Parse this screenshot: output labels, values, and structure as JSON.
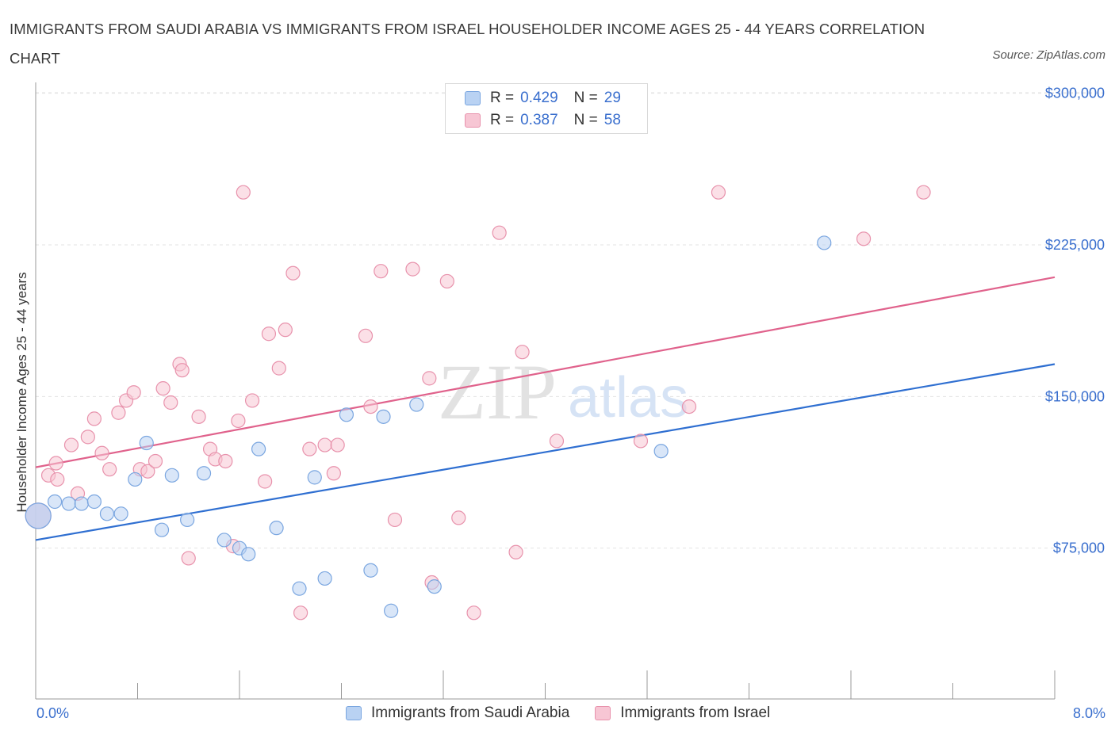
{
  "title": "IMMIGRANTS FROM SAUDI ARABIA VS IMMIGRANTS FROM ISRAEL HOUSEHOLDER INCOME AGES 25 - 44 YEARS CORRELATION CHART",
  "source": "Source: ZipAtlas.com",
  "watermark": {
    "zip": "ZIP",
    "atlas": "atlas"
  },
  "legend_top": {
    "rows": [
      {
        "r_label": "R =",
        "r_value": "0.429",
        "n_label": "N =",
        "n_value": "29"
      },
      {
        "r_label": "R =",
        "r_value": "0.387",
        "n_label": "N =",
        "n_value": "58"
      }
    ]
  },
  "colors": {
    "blue_fill": "#b9d2f3",
    "blue_stroke": "#7aa6e0",
    "blue_line": "#2f6fd1",
    "pink_fill": "#f7c6d4",
    "pink_stroke": "#e892ac",
    "pink_line": "#e0628c",
    "tick_text": "#3a6fce",
    "grid": "#e3e3e3",
    "axis": "#999999"
  },
  "chart_data": {
    "type": "scatter",
    "title": "IMMIGRANTS FROM SAUDI ARABIA VS IMMIGRANTS FROM ISRAEL HOUSEHOLDER INCOME AGES 25 - 44 YEARS CORRELATION CHART",
    "xlabel": "",
    "ylabel": "Householder Income Ages 25 - 44 years",
    "xlim": [
      0,
      8
    ],
    "ylim": [
      0,
      300000
    ],
    "x_tick_labels": {
      "min": "0.0%",
      "max": "8.0%"
    },
    "y_ticks": [
      {
        "value": 75000,
        "label": "$75,000"
      },
      {
        "value": 150000,
        "label": "$150,000"
      },
      {
        "value": 225000,
        "label": "$225,000"
      },
      {
        "value": 300000,
        "label": "$300,000"
      }
    ],
    "grid": true,
    "legend_position": "bottom",
    "series": [
      {
        "name": "Immigrants from Saudi Arabia",
        "color": "#b9d2f3",
        "trend": {
          "x": [
            0,
            8
          ],
          "y": 79000,
          "y_end": 166000
        },
        "points": [
          {
            "x": 0.02,
            "y": 91000,
            "big": true
          },
          {
            "x": 0.15,
            "y": 98000
          },
          {
            "x": 0.26,
            "y": 97000
          },
          {
            "x": 0.36,
            "y": 97000
          },
          {
            "x": 0.46,
            "y": 98000
          },
          {
            "x": 0.56,
            "y": 92000
          },
          {
            "x": 0.67,
            "y": 92000
          },
          {
            "x": 0.78,
            "y": 109000
          },
          {
            "x": 0.87,
            "y": 127000
          },
          {
            "x": 0.99,
            "y": 84000
          },
          {
            "x": 1.07,
            "y": 111000
          },
          {
            "x": 1.19,
            "y": 89000
          },
          {
            "x": 1.32,
            "y": 112000
          },
          {
            "x": 1.48,
            "y": 79000
          },
          {
            "x": 1.6,
            "y": 75000
          },
          {
            "x": 1.67,
            "y": 72000
          },
          {
            "x": 1.75,
            "y": 124000
          },
          {
            "x": 1.89,
            "y": 85000
          },
          {
            "x": 2.07,
            "y": 55000
          },
          {
            "x": 2.19,
            "y": 110000
          },
          {
            "x": 2.27,
            "y": 60000
          },
          {
            "x": 2.44,
            "y": 141000
          },
          {
            "x": 2.63,
            "y": 64000
          },
          {
            "x": 2.73,
            "y": 140000
          },
          {
            "x": 2.79,
            "y": 44000
          },
          {
            "x": 2.99,
            "y": 146000
          },
          {
            "x": 3.13,
            "y": 56000
          },
          {
            "x": 4.91,
            "y": 123000
          },
          {
            "x": 6.19,
            "y": 226000
          }
        ]
      },
      {
        "name": "Immigrants from Israel",
        "color": "#f7c6d4",
        "trend": {
          "x": [
            0,
            8
          ],
          "y": 115000,
          "y_end": 209000
        },
        "points": [
          {
            "x": 0.02,
            "y": 91000,
            "big": true
          },
          {
            "x": 0.1,
            "y": 111000
          },
          {
            "x": 0.17,
            "y": 109000
          },
          {
            "x": 0.16,
            "y": 117000
          },
          {
            "x": 0.28,
            "y": 126000
          },
          {
            "x": 0.33,
            "y": 102000
          },
          {
            "x": 0.41,
            "y": 130000
          },
          {
            "x": 0.46,
            "y": 139000
          },
          {
            "x": 0.52,
            "y": 122000
          },
          {
            "x": 0.58,
            "y": 114000
          },
          {
            "x": 0.65,
            "y": 142000
          },
          {
            "x": 0.71,
            "y": 148000
          },
          {
            "x": 0.77,
            "y": 152000
          },
          {
            "x": 0.82,
            "y": 114000
          },
          {
            "x": 0.88,
            "y": 113000
          },
          {
            "x": 0.94,
            "y": 118000
          },
          {
            "x": 1.0,
            "y": 154000
          },
          {
            "x": 1.06,
            "y": 147000
          },
          {
            "x": 1.13,
            "y": 166000
          },
          {
            "x": 1.15,
            "y": 163000
          },
          {
            "x": 1.2,
            "y": 70000
          },
          {
            "x": 1.28,
            "y": 140000
          },
          {
            "x": 1.37,
            "y": 124000
          },
          {
            "x": 1.41,
            "y": 119000
          },
          {
            "x": 1.49,
            "y": 118000
          },
          {
            "x": 1.55,
            "y": 76000
          },
          {
            "x": 1.59,
            "y": 138000
          },
          {
            "x": 1.63,
            "y": 251000
          },
          {
            "x": 1.7,
            "y": 148000
          },
          {
            "x": 1.8,
            "y": 108000
          },
          {
            "x": 1.83,
            "y": 181000
          },
          {
            "x": 1.91,
            "y": 164000
          },
          {
            "x": 1.96,
            "y": 183000
          },
          {
            "x": 2.02,
            "y": 211000
          },
          {
            "x": 2.08,
            "y": 43000
          },
          {
            "x": 2.15,
            "y": 124000
          },
          {
            "x": 2.27,
            "y": 126000
          },
          {
            "x": 2.34,
            "y": 112000
          },
          {
            "x": 2.37,
            "y": 126000
          },
          {
            "x": 2.59,
            "y": 180000
          },
          {
            "x": 2.63,
            "y": 145000
          },
          {
            "x": 2.71,
            "y": 212000
          },
          {
            "x": 2.82,
            "y": 89000
          },
          {
            "x": 2.96,
            "y": 213000
          },
          {
            "x": 3.11,
            "y": 58000
          },
          {
            "x": 3.09,
            "y": 159000
          },
          {
            "x": 3.23,
            "y": 207000
          },
          {
            "x": 3.32,
            "y": 90000
          },
          {
            "x": 3.44,
            "y": 43000
          },
          {
            "x": 3.64,
            "y": 231000
          },
          {
            "x": 3.77,
            "y": 73000
          },
          {
            "x": 3.82,
            "y": 172000
          },
          {
            "x": 4.09,
            "y": 128000
          },
          {
            "x": 4.75,
            "y": 128000
          },
          {
            "x": 5.13,
            "y": 145000
          },
          {
            "x": 5.36,
            "y": 251000
          },
          {
            "x": 6.5,
            "y": 228000
          },
          {
            "x": 6.97,
            "y": 251000
          }
        ]
      }
    ]
  }
}
